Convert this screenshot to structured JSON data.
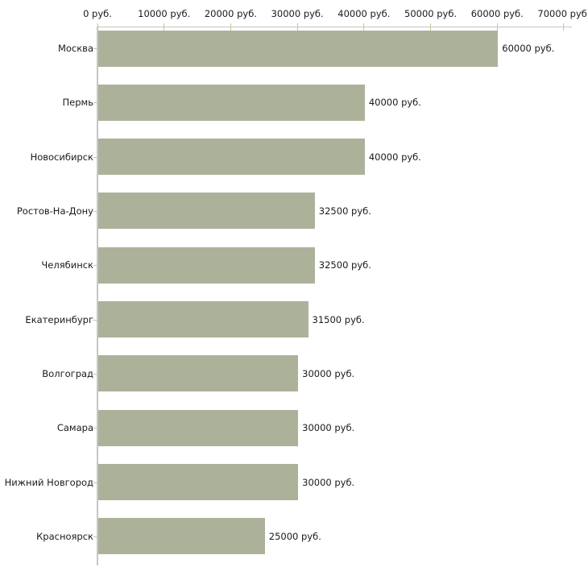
{
  "chart_data": {
    "type": "bar",
    "orientation": "horizontal",
    "title": "",
    "xlabel": "",
    "ylabel": "",
    "unit": "руб.",
    "categories": [
      "Москва",
      "Пермь",
      "Новосибирск",
      "Ростов-На-Дону",
      "Челябинск",
      "Екатеринбург",
      "Волгоград",
      "Самара",
      "Нижний Новгород",
      "Красноярск"
    ],
    "values": [
      60000,
      40000,
      40000,
      32500,
      32500,
      31500,
      30000,
      30000,
      30000,
      25000
    ],
    "value_labels": [
      "60000 руб.",
      "40000 руб.",
      "40000 руб.",
      "32500 руб.",
      "32500 руб.",
      "31500 руб.",
      "30000 руб.",
      "30000 руб.",
      "30000 руб.",
      "25000 руб."
    ],
    "x_ticks": [
      0,
      10000,
      20000,
      30000,
      40000,
      50000,
      60000,
      70000
    ],
    "x_tick_labels": [
      "0 руб.",
      "10000 руб.",
      "20000 руб.",
      "30000 руб.",
      "40000 руб.",
      "50000 руб.",
      "60000 руб.",
      "70000 руб."
    ],
    "xlim": [
      0,
      71200
    ],
    "grid": false,
    "legend": false,
    "colors": {
      "bar": "#acb29a",
      "axis_line": "#c6c6c6",
      "tick_mark": "#c6c69a",
      "text": "#1a1a1a",
      "background": "#ffffff"
    }
  }
}
